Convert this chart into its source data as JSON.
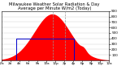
{
  "title": "Milwaukee Weather Solar Radiation & Day Average per Minute W/m2 (Today)",
  "bg_color": "#ffffff",
  "plot_bg_color": "#ffffff",
  "x_min": 0,
  "x_max": 1440,
  "y_min": 0,
  "y_max": 900,
  "solar_peak": 680,
  "solar_amplitude": 850,
  "solar_sigma": 240,
  "solar_color": "#ff0000",
  "avg_color": "#0000cc",
  "avg_value": 390,
  "avg_start": 200,
  "avg_end": 970,
  "dashed_line1": 690,
  "dashed_line2": 850,
  "dashed_color": "#999999",
  "grid_color": "#cccccc",
  "title_fontsize": 3.8,
  "axis_fontsize": 3.0,
  "yticks": [
    100,
    200,
    300,
    400,
    500,
    600,
    700,
    800,
    900
  ],
  "xtick_positions": [
    0,
    120,
    240,
    360,
    480,
    600,
    720,
    840,
    960,
    1080,
    1200,
    1320,
    1440
  ],
  "xtick_labels": [
    "12a",
    "2a",
    "4a",
    "6a",
    "8a",
    "10a",
    "12p",
    "2p",
    "4p",
    "6p",
    "8p",
    "10p",
    "12a"
  ]
}
